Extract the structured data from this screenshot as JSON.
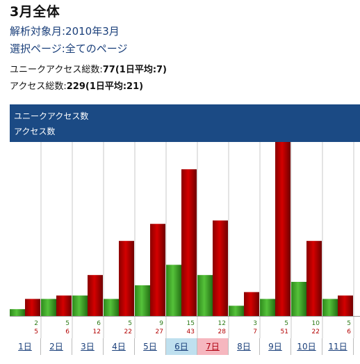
{
  "page": {
    "title": "3月全体",
    "target_month": "解析対象月:2010年3月",
    "selected_page": "選択ページ:全てのページ",
    "unique_label": "ユニークアクセス総数:",
    "unique_total": "77",
    "unique_avg": "(1日平均:7)",
    "access_label": "アクセス総数:",
    "access_total": "229",
    "access_avg": "(1日平均:21)"
  },
  "legend": {
    "unique": "ユニークアクセス数",
    "access": "アクセス数"
  },
  "colors": {
    "unique_bar": "#3f9f2a",
    "access_bar": "#b80000",
    "header_bg": "#1b4a84",
    "unique_text": "#2c7a16",
    "access_text": "#b30000"
  },
  "chart_data": {
    "type": "bar",
    "categories": [
      "1日",
      "2日",
      "3日",
      "4日",
      "5日",
      "6日",
      "7日",
      "8日",
      "9日",
      "10日",
      "11日"
    ],
    "series": [
      {
        "name": "ユニークアクセス数",
        "values": [
          2,
          5,
          6,
          5,
          9,
          15,
          12,
          3,
          5,
          10,
          5
        ]
      },
      {
        "name": "アクセス数",
        "values": [
          5,
          6,
          12,
          22,
          27,
          43,
          28,
          7,
          51,
          22,
          6
        ]
      }
    ],
    "ylim": [
      0,
      51
    ],
    "day_types": [
      "",
      "",
      "",
      "",
      "",
      "sat",
      "sun",
      "",
      "",
      "",
      ""
    ]
  }
}
